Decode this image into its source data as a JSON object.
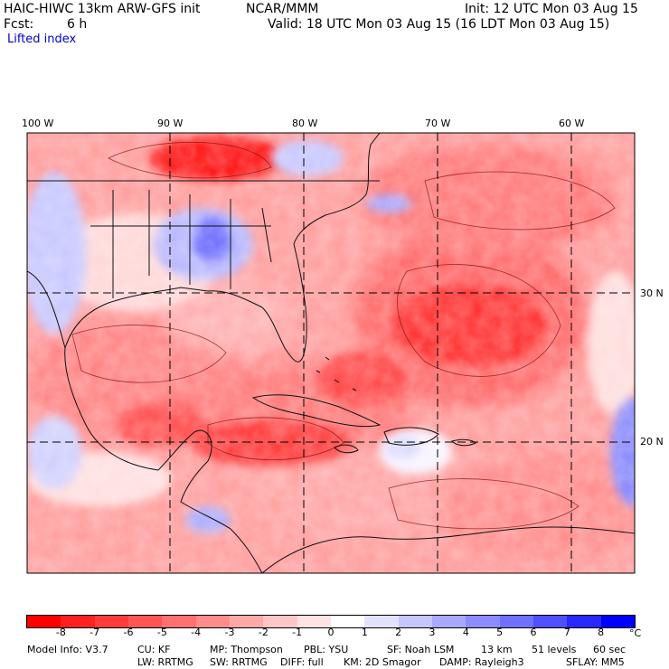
{
  "header": {
    "model": "HAIC-HIWC 13km ARW-GFS init",
    "org": "NCAR/MMM",
    "init": "Init: 12 UTC Mon 03 Aug 15",
    "fcst_label": "Fcst:",
    "fcst_value": "6 h",
    "valid": "Valid: 18 UTC Mon 03 Aug 15 (16 LDT Mon 03 Aug 15)",
    "field": "Lifted index"
  },
  "map": {
    "lon_labels": [
      "100 W",
      "90 W",
      "80 W",
      "70 W",
      "60 W"
    ],
    "lat_labels": [
      "30 N",
      "20 N"
    ]
  },
  "colorbar": {
    "labels": [
      "-8",
      "-7",
      "-6",
      "-5",
      "-4",
      "-3",
      "-2",
      "-1",
      "0",
      "1",
      "2",
      "3",
      "4",
      "5",
      "6",
      "7",
      "8"
    ],
    "unit": "°C",
    "colors": [
      "#ff0000",
      "#ff2020",
      "#ff3c3c",
      "#ff5555",
      "#ff7070",
      "#ff8c8c",
      "#ffa8a8",
      "#ffc6c6",
      "#ffe2e2",
      "#ffffff",
      "#e2e2ff",
      "#c6c6ff",
      "#a8a8ff",
      "#8c8cff",
      "#7070ff",
      "#5050ff",
      "#2828ff",
      "#0000ff"
    ]
  },
  "model_info": {
    "line1": [
      "Model Info: V3.7",
      "CU: KF",
      "MP: Thompson",
      "PBL: YSU",
      "SF: Noah LSM",
      "13 km",
      "51 levels",
      "60 sec"
    ],
    "line2": [
      "LW: RRTMG",
      "SW: RRTMG",
      "DIFF: full",
      "KM: 2D Smagor",
      "DAMP: Rayleigh3",
      "SFLAY: MM5"
    ]
  }
}
